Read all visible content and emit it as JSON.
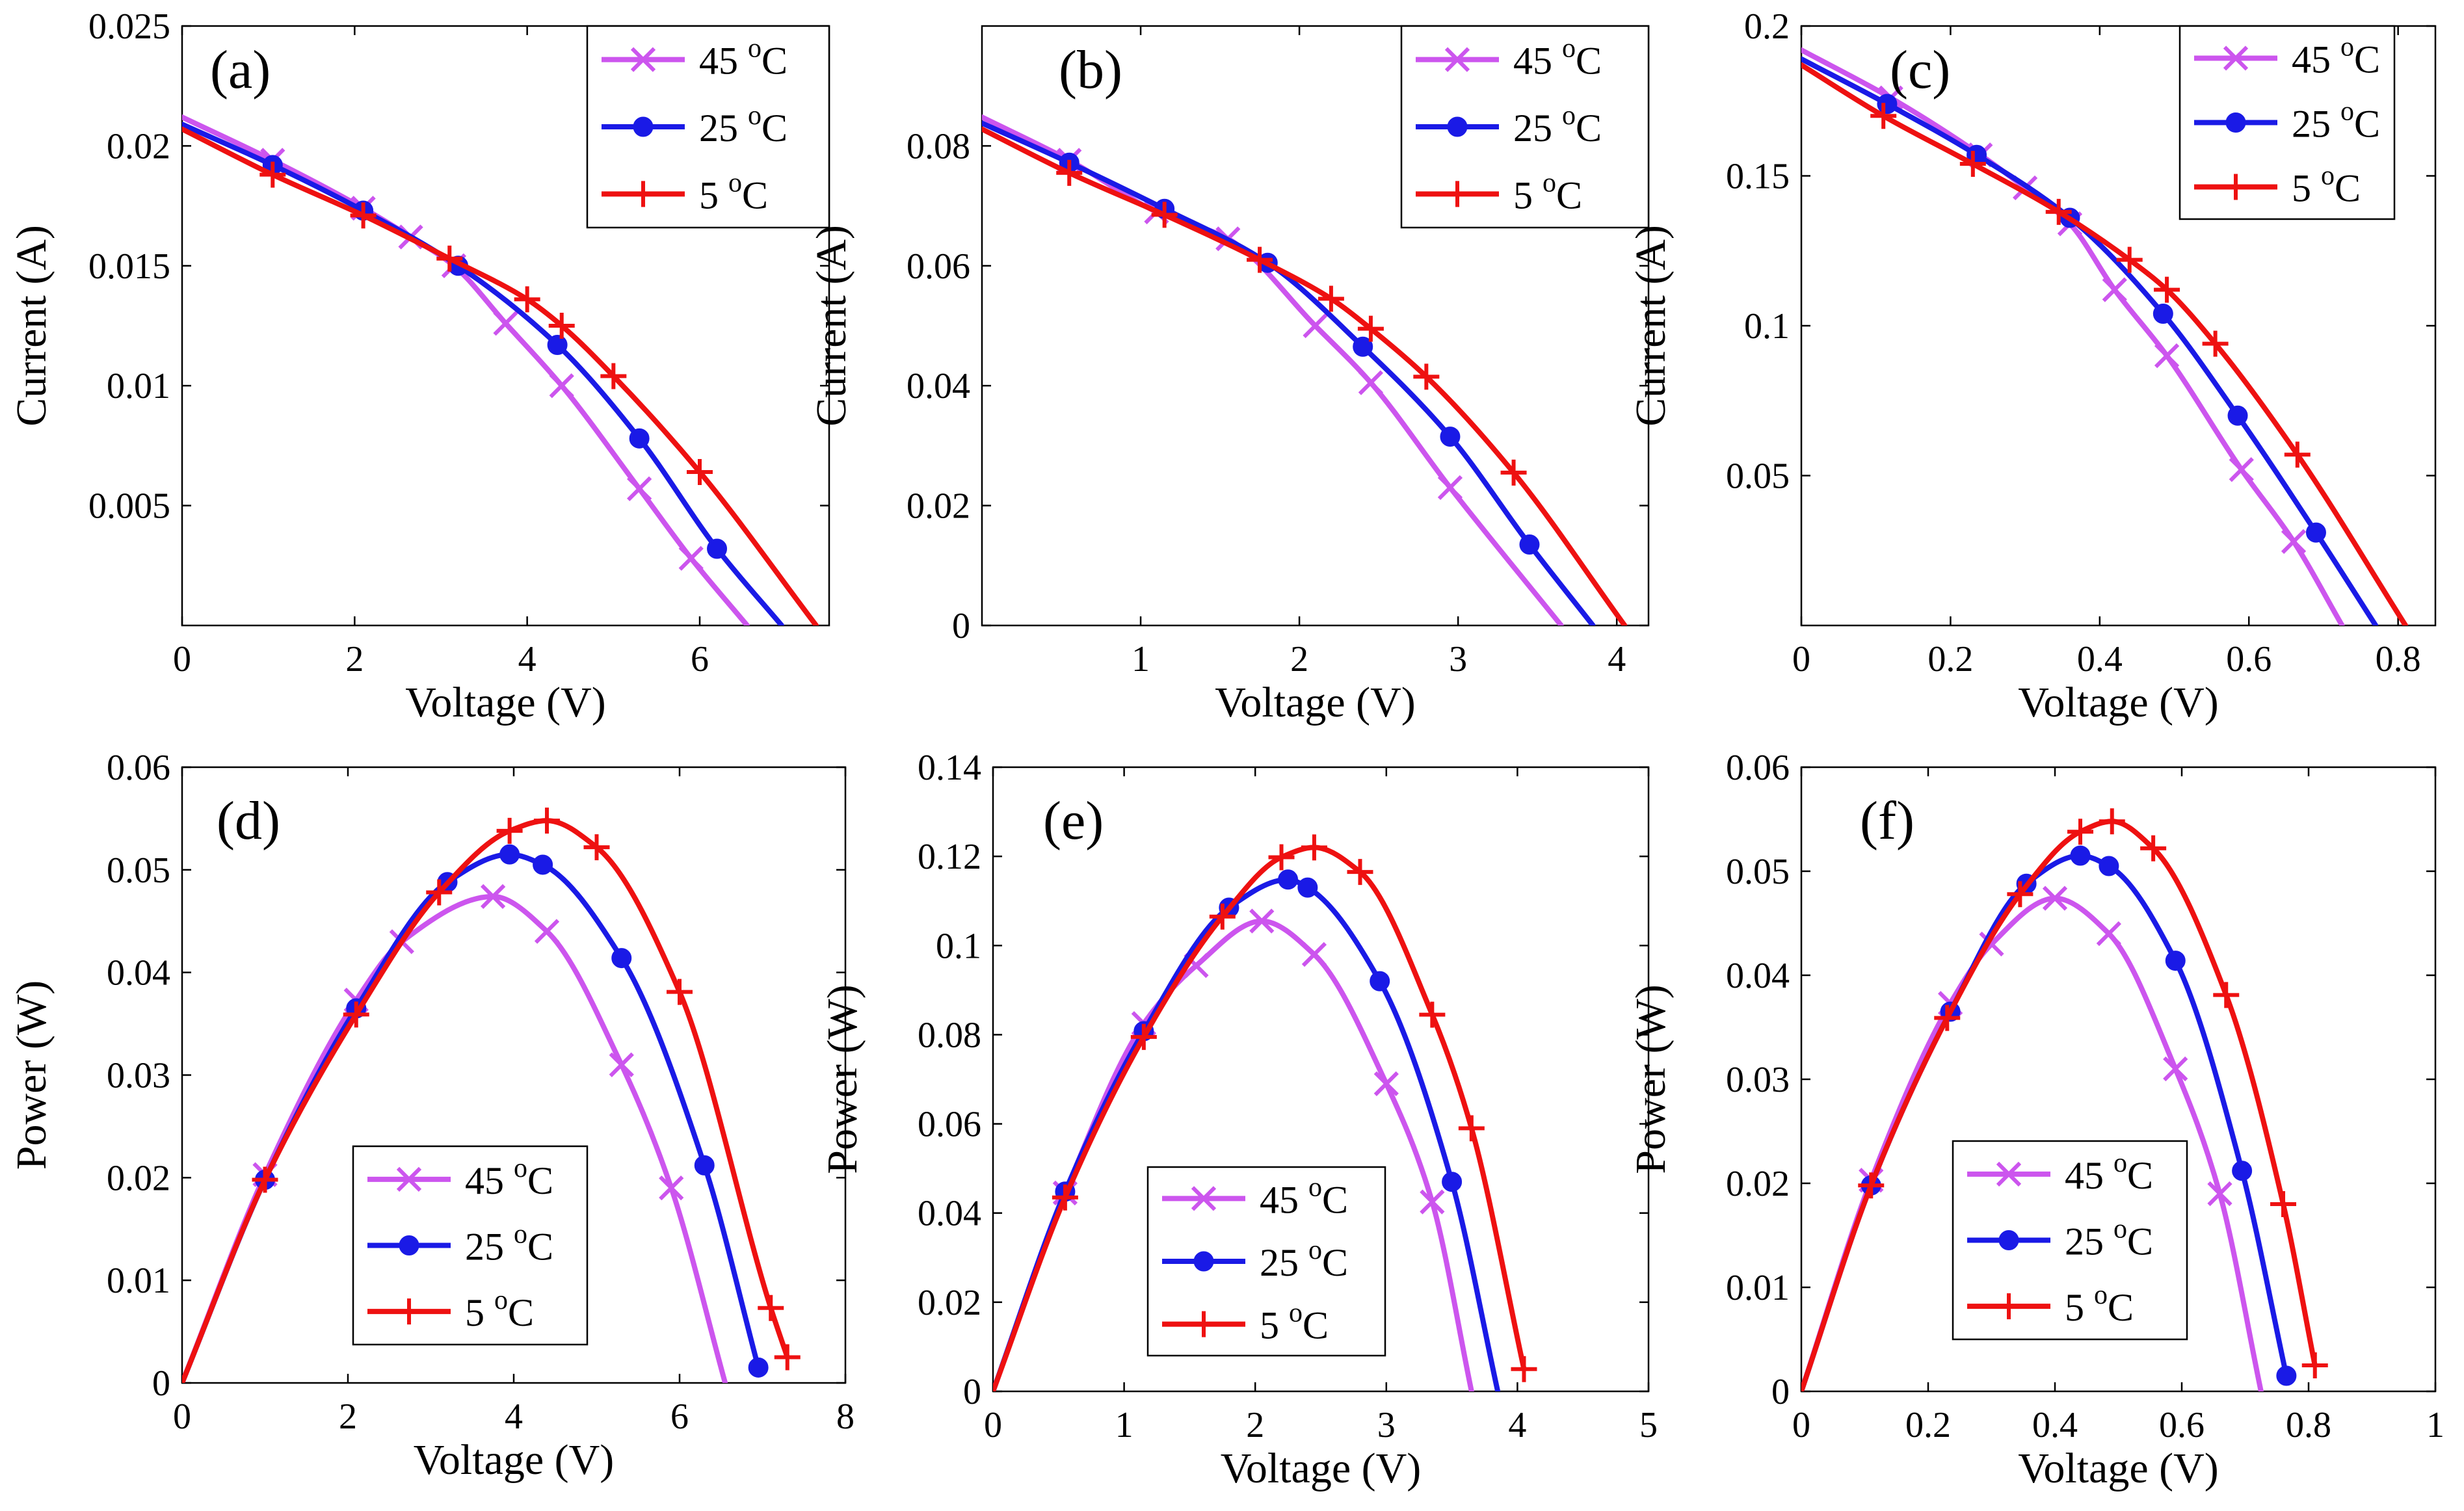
{
  "colors": {
    "45": "#cc55ee",
    "25": "#1a1ae6",
    "5": "#ee1111"
  },
  "chart_data": [
    {
      "panel_label": "(a)",
      "type": "line",
      "xlabel": "Voltage (V)",
      "ylabel": "Current (A)",
      "xlim": [
        0,
        7.5
      ],
      "ylim": [
        0,
        0.025
      ],
      "xticks": [
        0,
        2,
        4,
        6
      ],
      "xtick_labels": [
        "0",
        "2",
        "4",
        "6"
      ],
      "yticks": [
        0.005,
        0.01,
        0.015,
        0.02,
        0.025
      ],
      "ytick_labels": [
        "0.005",
        "0.01",
        "0.015",
        "0.02",
        "0.025"
      ],
      "legend_position": "top-right",
      "series": [
        {
          "name": "45 °C",
          "temp": "45",
          "marker": "x",
          "x": [
            0,
            1.05,
            2.1,
            2.65,
            3.15,
            3.75,
            4.4,
            5.3,
            5.9,
            6.55
          ],
          "y": [
            0.0212,
            0.0194,
            0.0174,
            0.0162,
            0.015,
            0.0126,
            0.01,
            0.0057,
            0.0028,
            0.0
          ]
        },
        {
          "name": "25 °C",
          "temp": "25",
          "marker": "o",
          "x": [
            0,
            1.05,
            2.1,
            3.2,
            4.35,
            5.3,
            6.2,
            6.95
          ],
          "y": [
            0.0209,
            0.0192,
            0.0173,
            0.015,
            0.0117,
            0.0078,
            0.0032,
            0.0
          ]
        },
        {
          "name": "5 °C",
          "temp": "5",
          "marker": "+",
          "x": [
            0,
            1.05,
            2.1,
            3.1,
            4.0,
            4.4,
            5.0,
            6.0,
            7.35
          ],
          "y": [
            0.0207,
            0.0188,
            0.0171,
            0.0153,
            0.0136,
            0.0125,
            0.0104,
            0.0064,
            0.0
          ]
        }
      ]
    },
    {
      "panel_label": "(b)",
      "type": "line",
      "xlabel": "Voltage (V)",
      "ylabel": "Current (A)",
      "xlim": [
        0,
        4.2
      ],
      "ylim": [
        0,
        0.1
      ],
      "xticks": [
        1,
        2,
        3,
        4
      ],
      "xtick_labels": [
        "1",
        "2",
        "3",
        "4"
      ],
      "yticks": [
        0,
        0.02,
        0.04,
        0.06,
        0.08
      ],
      "ytick_labels": [
        "0",
        "0.02",
        "0.04",
        "0.06",
        "0.08"
      ],
      "legend_position": "top-right",
      "series": [
        {
          "name": "45 °C",
          "temp": "45",
          "marker": "x",
          "x": [
            0,
            0.55,
            1.1,
            1.55,
            2.1,
            2.45,
            2.95,
            3.65
          ],
          "y": [
            0.0848,
            0.0776,
            0.069,
            0.0645,
            0.05,
            0.0405,
            0.023,
            0.0
          ]
        },
        {
          "name": "25 °C",
          "temp": "25",
          "marker": "o",
          "x": [
            0,
            0.55,
            1.15,
            1.8,
            2.4,
            2.95,
            3.45,
            3.85
          ],
          "y": [
            0.0838,
            0.0772,
            0.0695,
            0.0605,
            0.0465,
            0.0315,
            0.0135,
            0.0
          ]
        },
        {
          "name": "5 °C",
          "temp": "5",
          "marker": "+",
          "x": [
            0,
            0.55,
            1.15,
            1.75,
            2.2,
            2.45,
            2.8,
            3.35,
            4.05
          ],
          "y": [
            0.0828,
            0.0755,
            0.0685,
            0.061,
            0.0545,
            0.0495,
            0.0415,
            0.0255,
            0.0
          ]
        }
      ]
    },
    {
      "panel_label": "(c)",
      "type": "line",
      "xlabel": "Voltage (V)",
      "ylabel": "Current (A)",
      "xlim": [
        0,
        0.85
      ],
      "ylim": [
        0,
        0.2
      ],
      "xticks": [
        0,
        0.2,
        0.4,
        0.6,
        0.8
      ],
      "xtick_labels": [
        "0",
        "0.2",
        "0.4",
        "0.6",
        "0.8"
      ],
      "yticks": [
        0.05,
        0.1,
        0.15,
        0.2
      ],
      "ytick_labels": [
        "0.05",
        "0.1",
        "0.15",
        "0.2"
      ],
      "legend_position": "top-right",
      "series": [
        {
          "name": "45 °C",
          "temp": "45",
          "marker": "x",
          "x": [
            0,
            0.12,
            0.24,
            0.3,
            0.36,
            0.42,
            0.49,
            0.59,
            0.66,
            0.725
          ],
          "y": [
            0.192,
            0.176,
            0.157,
            0.146,
            0.134,
            0.112,
            0.09,
            0.052,
            0.028,
            0.0
          ]
        },
        {
          "name": "25 °C",
          "temp": "25",
          "marker": "o",
          "x": [
            0,
            0.115,
            0.235,
            0.36,
            0.485,
            0.585,
            0.69,
            0.77
          ],
          "y": [
            0.189,
            0.174,
            0.157,
            0.136,
            0.104,
            0.07,
            0.031,
            0.0
          ]
        },
        {
          "name": "5 °C",
          "temp": "5",
          "marker": "+",
          "x": [
            0,
            0.11,
            0.23,
            0.345,
            0.44,
            0.49,
            0.555,
            0.665,
            0.81
          ],
          "y": [
            0.187,
            0.17,
            0.154,
            0.138,
            0.122,
            0.112,
            0.094,
            0.057,
            0.0
          ]
        }
      ]
    },
    {
      "panel_label": "(d)",
      "type": "line",
      "xlabel": "Voltage (V)",
      "ylabel": "Power (W)",
      "xlim": [
        0,
        8
      ],
      "ylim": [
        0,
        0.06
      ],
      "xticks": [
        0,
        2,
        4,
        6,
        8
      ],
      "xtick_labels": [
        "0",
        "2",
        "4",
        "6",
        "8"
      ],
      "yticks": [
        0,
        0.01,
        0.02,
        0.03,
        0.04,
        0.05,
        0.06
      ],
      "ytick_labels": [
        "0",
        "0.01",
        "0.02",
        "0.03",
        "0.04",
        "0.05",
        "0.06"
      ],
      "legend_position": "bottom-center",
      "series": [
        {
          "name": "45 °C",
          "temp": "45",
          "marker": "x",
          "x": [
            0,
            1.0,
            2.1,
            2.65,
            3.75,
            4.4,
            5.3,
            5.9,
            6.55
          ],
          "y": [
            0.0,
            0.0203,
            0.0373,
            0.043,
            0.0474,
            0.044,
            0.031,
            0.019,
            0.0
          ]
        },
        {
          "name": "25 °C",
          "temp": "25",
          "marker": "o",
          "x": [
            0,
            1.0,
            2.1,
            3.2,
            3.95,
            4.35,
            5.3,
            6.3,
            6.95
          ],
          "y": [
            0.0,
            0.0198,
            0.0365,
            0.0488,
            0.0515,
            0.0505,
            0.0414,
            0.0212,
            0.0015
          ]
        },
        {
          "name": "5 °C",
          "temp": "5",
          "marker": "+",
          "x": [
            0,
            1.0,
            2.1,
            3.1,
            3.95,
            4.4,
            5.0,
            6.0,
            7.1,
            7.3
          ],
          "y": [
            0.0,
            0.0198,
            0.0359,
            0.0478,
            0.0538,
            0.0548,
            0.0522,
            0.0381,
            0.0073,
            0.0025
          ]
        }
      ]
    },
    {
      "panel_label": "(e)",
      "type": "line",
      "xlabel": "Voltage (V)",
      "ylabel": "Power (W)",
      "xlim": [
        0,
        5
      ],
      "ylim": [
        0,
        0.14
      ],
      "xticks": [
        0,
        1,
        2,
        3,
        4,
        5
      ],
      "xtick_labels": [
        "0",
        "1",
        "2",
        "3",
        "4",
        "5"
      ],
      "yticks": [
        0,
        0.02,
        0.04,
        0.06,
        0.08,
        0.1,
        0.12,
        0.14
      ],
      "ytick_labels": [
        "0",
        "0.02",
        "0.04",
        "0.06",
        "0.08",
        "0.1",
        "0.12",
        "0.14"
      ],
      "legend_position": "bottom-center",
      "series": [
        {
          "name": "45 °C",
          "temp": "45",
          "marker": "x",
          "x": [
            0,
            0.55,
            1.15,
            1.55,
            2.05,
            2.45,
            3.0,
            3.35,
            3.65
          ],
          "y": [
            0.0,
            0.0445,
            0.0825,
            0.0955,
            0.1055,
            0.098,
            0.069,
            0.0425,
            0.0
          ]
        },
        {
          "name": "25 °C",
          "temp": "25",
          "marker": "o",
          "x": [
            0,
            0.55,
            1.15,
            1.8,
            2.25,
            2.4,
            2.95,
            3.5,
            3.85
          ],
          "y": [
            0.0,
            0.0448,
            0.0808,
            0.1085,
            0.1148,
            0.113,
            0.092,
            0.047,
            0.0
          ]
        },
        {
          "name": "5 °C",
          "temp": "5",
          "marker": "+",
          "x": [
            0,
            0.55,
            1.15,
            1.75,
            2.2,
            2.45,
            2.8,
            3.35,
            3.65,
            4.05
          ],
          "y": [
            0.0,
            0.0435,
            0.0795,
            0.1065,
            0.1198,
            0.122,
            0.1165,
            0.0845,
            0.059,
            0.005
          ]
        }
      ]
    },
    {
      "panel_label": "(f)",
      "type": "line",
      "xlabel": "Voltage (V)",
      "ylabel": "Power (W)",
      "xlim": [
        0,
        1
      ],
      "ylim": [
        0,
        0.06
      ],
      "xticks": [
        0,
        0.2,
        0.4,
        0.6,
        0.8,
        1
      ],
      "xtick_labels": [
        "0",
        "0.2",
        "0.4",
        "0.6",
        "0.8",
        "1"
      ],
      "yticks": [
        0,
        0.01,
        0.02,
        0.03,
        0.04,
        0.05,
        0.06
      ],
      "ytick_labels": [
        "0",
        "0.01",
        "0.02",
        "0.03",
        "0.04",
        "0.05",
        "0.06"
      ],
      "legend_position": "bottom-center",
      "series": [
        {
          "name": "45 °C",
          "temp": "45",
          "marker": "x",
          "x": [
            0,
            0.11,
            0.235,
            0.3,
            0.4,
            0.485,
            0.59,
            0.66,
            0.725
          ],
          "y": [
            0.0,
            0.0203,
            0.0373,
            0.043,
            0.0474,
            0.044,
            0.031,
            0.019,
            0.0
          ]
        },
        {
          "name": "25 °C",
          "temp": "25",
          "marker": "o",
          "x": [
            0,
            0.11,
            0.235,
            0.355,
            0.44,
            0.485,
            0.59,
            0.695,
            0.765
          ],
          "y": [
            0.0,
            0.0198,
            0.0365,
            0.0488,
            0.0515,
            0.0505,
            0.0414,
            0.0212,
            0.0015
          ]
        },
        {
          "name": "5 °C",
          "temp": "5",
          "marker": "+",
          "x": [
            0,
            0.11,
            0.23,
            0.345,
            0.44,
            0.49,
            0.555,
            0.67,
            0.76,
            0.81
          ],
          "y": [
            0.0,
            0.0198,
            0.0359,
            0.0478,
            0.0538,
            0.0548,
            0.0522,
            0.0381,
            0.018,
            0.0025
          ]
        }
      ]
    }
  ]
}
